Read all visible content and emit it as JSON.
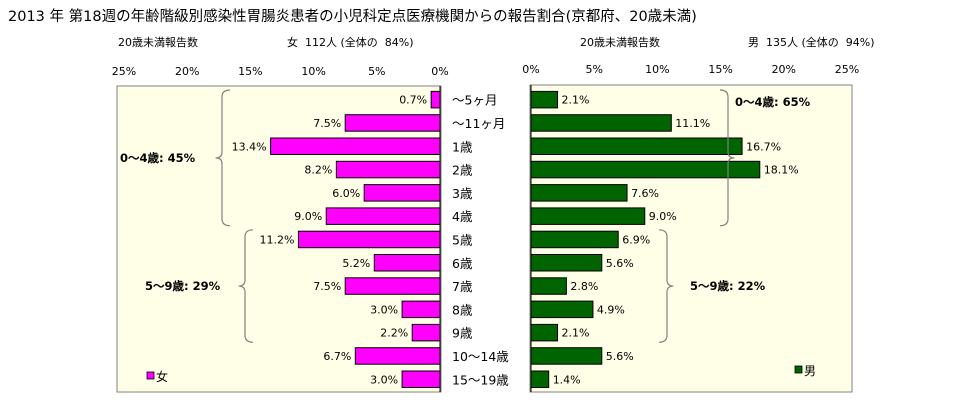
{
  "title": "2013 年 第18週の年齢階級別感染性胃腸炎患者の小児科定点医療機関からの報告割合(京都府、20歳未満)",
  "chart_data": [
    {
      "type": "bar",
      "orientation": "horizontal",
      "direction": "right-to-left",
      "subtitle_count": "20歳未満報告数",
      "subtitle_total": "女  112人 (全体の  84%)",
      "legend": "女",
      "legend_position": "bottom-left",
      "color": "#ff00ff",
      "xlim": [
        0,
        25
      ],
      "ticks": [
        "25%",
        "20%",
        "15%",
        "10%",
        "5%",
        "0%"
      ],
      "tick_values": [
        25,
        20,
        15,
        10,
        5,
        0
      ],
      "grid": false,
      "categories": [
        "〜5ヶ月",
        "〜11ヶ月",
        "1歳",
        "2歳",
        "3歳",
        "4歳",
        "5歳",
        "6歳",
        "7歳",
        "8歳",
        "9歳",
        "10〜14歳",
        "15〜19歳"
      ],
      "values": [
        0.7,
        7.5,
        13.4,
        8.2,
        6.0,
        9.0,
        11.2,
        5.2,
        7.5,
        3.0,
        2.2,
        6.7,
        3.0
      ],
      "value_labels": [
        "0.7%",
        "7.5%",
        "13.4%",
        "8.2%",
        "6.0%",
        "9.0%",
        "11.2%",
        "5.2%",
        "7.5%",
        "3.0%",
        "2.2%",
        "6.7%",
        "3.0%"
      ],
      "annotations": [
        {
          "text": "0〜4歳: 45%",
          "from": 0,
          "to": 5
        },
        {
          "text": "5〜9歳: 29%",
          "from": 6,
          "to": 10
        }
      ]
    },
    {
      "type": "bar",
      "orientation": "horizontal",
      "direction": "left-to-right",
      "subtitle_count": "20歳未満報告数",
      "subtitle_total": "男  135人 (全体の  94%)",
      "legend": "男",
      "legend_position": "bottom-right",
      "color": "#006400",
      "xlim": [
        0,
        25
      ],
      "ticks": [
        "0%",
        "5%",
        "10%",
        "15%",
        "20%",
        "25%"
      ],
      "tick_values": [
        0,
        5,
        10,
        15,
        20,
        25
      ],
      "grid": false,
      "categories": [
        "〜5ヶ月",
        "〜11ヶ月",
        "1歳",
        "2歳",
        "3歳",
        "4歳",
        "5歳",
        "6歳",
        "7歳",
        "8歳",
        "9歳",
        "10〜14歳",
        "15〜19歳"
      ],
      "values": [
        2.1,
        11.1,
        16.7,
        18.1,
        7.6,
        9.0,
        6.9,
        5.6,
        2.8,
        4.9,
        2.1,
        5.6,
        1.4
      ],
      "value_labels": [
        "2.1%",
        "11.1%",
        "16.7%",
        "18.1%",
        "7.6%",
        "9.0%",
        "6.9%",
        "5.6%",
        "2.8%",
        "4.9%",
        "2.1%",
        "5.6%",
        "1.4%"
      ],
      "annotations": [
        {
          "text": "0〜4歳: 65%",
          "from": 0,
          "to": 5
        },
        {
          "text": "5〜9歳: 22%",
          "from": 6,
          "to": 10
        }
      ]
    }
  ]
}
